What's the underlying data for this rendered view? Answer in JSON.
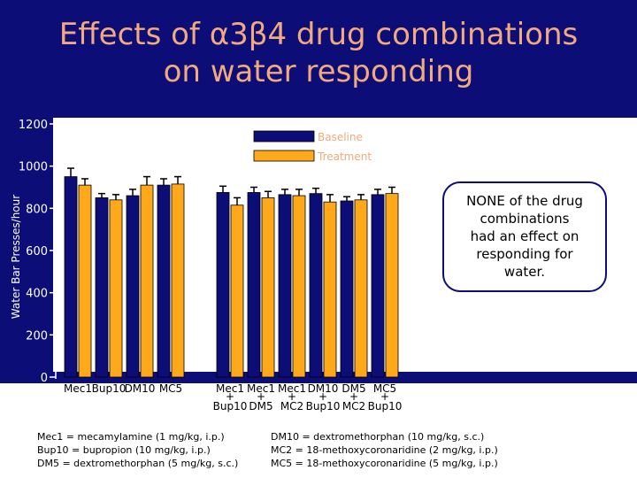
{
  "title": {
    "line1": "Effects of α3β4 drug combinations",
    "line2": "on water responding"
  },
  "colors": {
    "background": "#0d0d78",
    "plot_bg": "#ffffff",
    "baseline": "#0d0d78",
    "treatment": "#ffa81a",
    "title": "#f2a97c"
  },
  "callout": {
    "lines": [
      "NONE of the drug",
      "combinations",
      "had an effect on",
      "responding for",
      "water."
    ]
  },
  "footnotes": {
    "left": [
      "Mec1 = mecamylamine (1 mg/kg, i.p.)",
      "Bup10 = bupropion (10 mg/kg, i.p.)",
      "DM5 = dextromethorphan (5 mg/kg, s.c.)"
    ],
    "right": [
      "DM10 = dextromethorphan (10 mg/kg, s.c.)",
      "MC2 = 18-methoxycoronaridine (2 mg/kg, i.p.)",
      "MC5 = 18-methoxycoronaridine (5 mg/kg, i.p.)"
    ]
  },
  "chart_data": {
    "type": "bar",
    "title": "Effects of α3β4 drug combinations on water responding",
    "ylabel": "Water Bar Presses/hour",
    "xlabel": "",
    "ylim": [
      0,
      1200
    ],
    "yticks": [
      0,
      200,
      400,
      600,
      800,
      1000,
      1200
    ],
    "legend": {
      "position": "top-center",
      "entries": [
        "Baseline",
        "Treatment"
      ]
    },
    "categories": [
      {
        "top": "Mec1",
        "bottom": ""
      },
      {
        "top": "Bup10",
        "bottom": ""
      },
      {
        "top": "DM10",
        "bottom": ""
      },
      {
        "top": "MC5",
        "bottom": ""
      },
      {
        "top": "Mec1",
        "bottom": "Bup10"
      },
      {
        "top": "Mec1",
        "bottom": "DM5"
      },
      {
        "top": "Mec1",
        "bottom": "MC2"
      },
      {
        "top": "DM10",
        "bottom": "Bup10"
      },
      {
        "top": "DM5",
        "bottom": "MC2"
      },
      {
        "top": "MC5",
        "bottom": "Bup10"
      }
    ],
    "plus_sign": "+",
    "series": [
      {
        "name": "Baseline",
        "values": [
          950,
          850,
          860,
          910,
          875,
          875,
          865,
          870,
          835,
          865
        ]
      },
      {
        "name": "Treatment",
        "values": [
          910,
          840,
          910,
          915,
          815,
          850,
          860,
          830,
          840,
          870
        ]
      }
    ],
    "error": {
      "Baseline": [
        40,
        20,
        30,
        30,
        30,
        25,
        25,
        25,
        20,
        25
      ],
      "Treatment": [
        30,
        25,
        40,
        35,
        35,
        30,
        30,
        35,
        25,
        30
      ]
    }
  }
}
